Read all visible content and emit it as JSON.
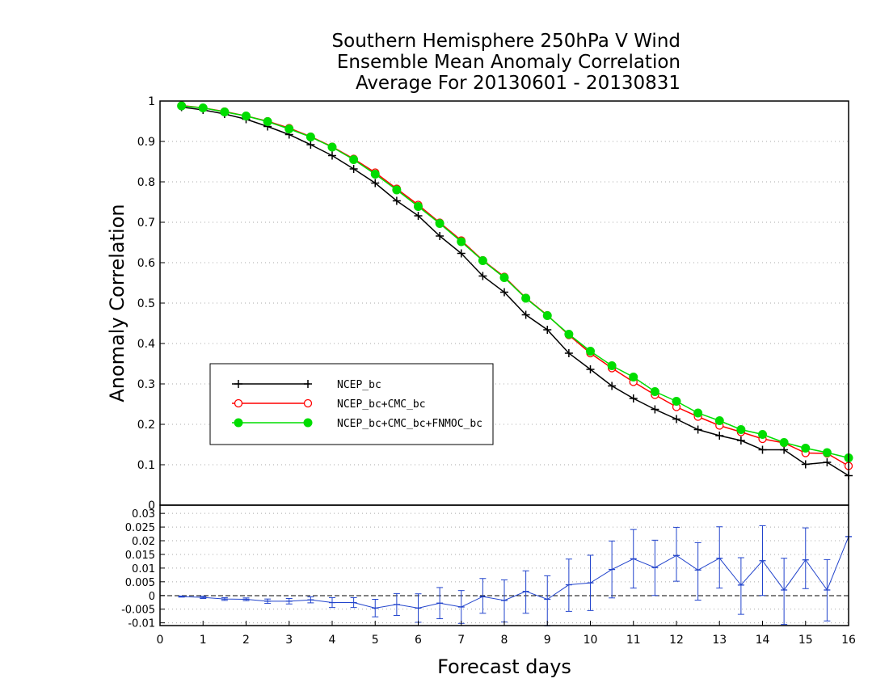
{
  "chart_data": [
    {
      "type": "line",
      "title": [
        "Southern Hemisphere 250hPa V Wind",
        "Ensemble Mean Anomaly Correlation",
        "Average For 20130601 - 20130831"
      ],
      "ylabel": "Anomaly Correlation",
      "xlim": [
        0,
        16
      ],
      "ylim": [
        0,
        1
      ],
      "yticks": [
        "0",
        "0.1",
        "0.2",
        "0.3",
        "0.4",
        "0.5",
        "0.6",
        "0.7",
        "0.8",
        "0.9",
        "1"
      ],
      "grid": true,
      "legend_position": "left",
      "x": [
        0.5,
        1,
        1.5,
        2,
        2.5,
        3,
        3.5,
        4,
        4.5,
        5,
        5.5,
        6,
        6.5,
        7,
        7.5,
        8,
        8.5,
        9,
        9.5,
        10,
        10.5,
        11,
        11.5,
        12,
        12.5,
        13,
        13.5,
        14,
        14.5,
        15,
        15.5,
        16
      ],
      "series": [
        {
          "name": "NCEP_bc",
          "color": "#000000",
          "marker": "plus",
          "values": [
            0.985,
            0.978,
            0.968,
            0.955,
            0.937,
            0.917,
            0.892,
            0.865,
            0.832,
            0.797,
            0.753,
            0.716,
            0.666,
            0.623,
            0.567,
            0.527,
            0.471,
            0.434,
            0.376,
            0.336,
            0.295,
            0.264,
            0.237,
            0.213,
            0.187,
            0.172,
            0.16,
            0.137,
            0.137,
            0.101,
            0.106,
            0.073
          ]
        },
        {
          "name": "NCEP_bc+CMC_bc",
          "color": "#ff0000",
          "marker": "open-circle",
          "values": [
            0.989,
            0.983,
            0.974,
            0.963,
            0.95,
            0.933,
            0.912,
            0.887,
            0.857,
            0.823,
            0.783,
            0.743,
            0.699,
            0.655,
            0.606,
            0.565,
            0.513,
            0.47,
            0.421,
            0.376,
            0.339,
            0.305,
            0.273,
            0.243,
            0.219,
            0.197,
            0.181,
            0.164,
            0.154,
            0.129,
            0.128,
            0.097
          ]
        },
        {
          "name": "NCEP_bc+CMC_bc+FNMOC_bc",
          "color": "#00dd00",
          "marker": "filled-circle",
          "values": [
            0.988,
            0.983,
            0.973,
            0.963,
            0.949,
            0.931,
            0.911,
            0.886,
            0.855,
            0.819,
            0.78,
            0.739,
            0.697,
            0.652,
            0.605,
            0.563,
            0.512,
            0.469,
            0.423,
            0.381,
            0.345,
            0.317,
            0.281,
            0.257,
            0.228,
            0.209,
            0.187,
            0.175,
            0.155,
            0.141,
            0.13,
            0.117
          ]
        }
      ]
    },
    {
      "type": "line",
      "xlabel": "Forecast days",
      "xlim": [
        0,
        16
      ],
      "ylim": [
        -0.011,
        0.033
      ],
      "xticks": [
        "0",
        "1",
        "2",
        "3",
        "4",
        "5",
        "6",
        "7",
        "8",
        "9",
        "10",
        "11",
        "12",
        "13",
        "14",
        "15",
        "16"
      ],
      "yticks": [
        "-0.01",
        "-0.005",
        "0",
        "0.005",
        "0.01",
        "0.015",
        "0.02",
        "0.025",
        "0.03"
      ],
      "grid": true,
      "x": [
        0.5,
        1,
        1.5,
        2,
        2.5,
        3,
        3.5,
        4,
        4.5,
        5,
        5.5,
        6,
        6.5,
        7,
        7.5,
        8,
        8.5,
        9,
        9.5,
        10,
        10.5,
        11,
        11.5,
        12,
        12.5,
        13,
        13.5,
        14,
        14.5,
        15,
        15.5,
        16
      ],
      "series": [
        {
          "name": "",
          "color": "#2244cc",
          "values": [
            -0.0004,
            -0.0007,
            -0.0013,
            -0.0014,
            -0.0021,
            -0.0021,
            -0.0016,
            -0.0026,
            -0.0026,
            -0.0046,
            -0.0033,
            -0.0046,
            -0.0028,
            -0.0042,
            -0.0004,
            -0.0018,
            0.0015,
            -0.0014,
            0.0039,
            0.0046,
            0.0095,
            0.0134,
            0.0102,
            0.0146,
            0.0093,
            0.0136,
            0.0038,
            0.0127,
            0.002,
            0.013,
            0.002,
            0.0215
          ],
          "error_low": [
            -0.0006,
            -0.0011,
            -0.0018,
            -0.0019,
            -0.0029,
            -0.0031,
            -0.0027,
            -0.0044,
            -0.0044,
            -0.0078,
            -0.0073,
            -0.0098,
            -0.0085,
            -0.0102,
            -0.0065,
            -0.0097,
            -0.0065,
            -0.0111,
            -0.0058,
            -0.0055,
            -0.0009,
            0.0027,
            0.0,
            0.0052,
            -0.0017,
            0.0027,
            -0.0069,
            0.0,
            -0.0106,
            0.0025,
            -0.0093,
            0.0215
          ],
          "error_high": [
            -0.0002,
            -0.0003,
            -0.0008,
            -0.0009,
            -0.0013,
            -0.0011,
            -0.0005,
            -0.0008,
            -0.0008,
            -0.0014,
            0.0007,
            0.0006,
            0.0029,
            0.0018,
            0.0062,
            0.0057,
            0.009,
            0.0072,
            0.0133,
            0.0147,
            0.0199,
            0.0241,
            0.0202,
            0.0249,
            0.0193,
            0.0251,
            0.0138,
            0.0255,
            0.0136,
            0.0247,
            0.0131,
            0.0215
          ]
        }
      ]
    }
  ]
}
